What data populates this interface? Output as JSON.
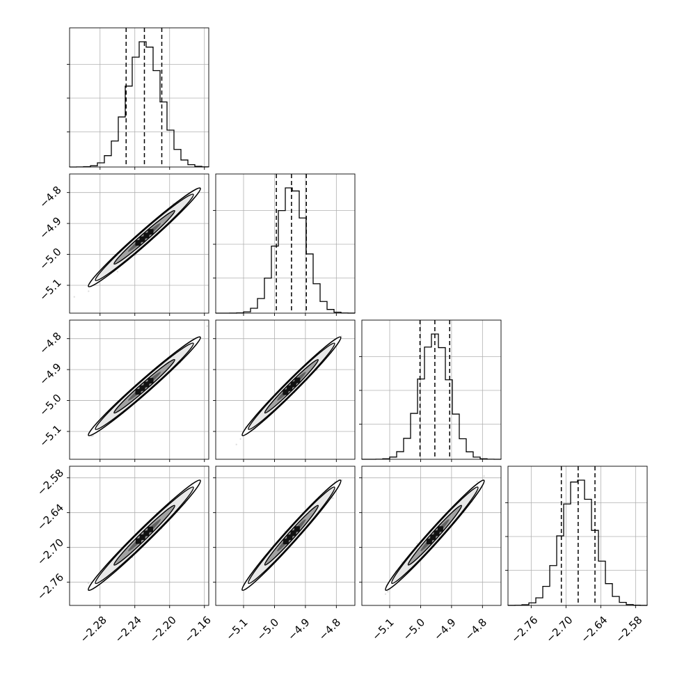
{
  "chart_data": {
    "type": "corner",
    "figure": "corner plot of 4 parameters: 1D marginal histograms on the diagonal, 2D density contours with scatter in the lower triangle",
    "parameters": [
      {
        "name": "",
        "range": [
          -2.315,
          -2.155
        ],
        "ticks": [
          -2.28,
          -2.24,
          -2.2,
          -2.16
        ],
        "tick_labels": [
          "−2.28",
          "−2.24",
          "−2.20",
          "−2.16"
        ],
        "mean": -2.229,
        "sigma": 0.019,
        "quantiles": [
          -2.25,
          -2.229,
          -2.209
        ]
      },
      {
        "name": "",
        "range": [
          -5.19,
          -4.74
        ],
        "ticks": [
          -5.1,
          -5.0,
          -4.9,
          -4.8
        ],
        "tick_labels": [
          "−5.1",
          "−5.0",
          "−4.9",
          "−4.8"
        ],
        "mean": -4.945,
        "sigma": 0.047,
        "quantiles": [
          -4.994,
          -4.945,
          -4.897
        ]
      },
      {
        "name": "",
        "range": [
          -5.19,
          -4.74
        ],
        "ticks": [
          -5.1,
          -5.0,
          -4.9,
          -4.8
        ],
        "tick_labels": [
          "−5.1",
          "−5.0",
          "−4.9",
          "−4.8"
        ],
        "mean": -4.954,
        "sigma": 0.047,
        "quantiles": [
          -5.002,
          -4.954,
          -4.906
        ]
      },
      {
        "name": "",
        "range": [
          -2.8,
          -2.56
        ],
        "ticks": [
          -2.76,
          -2.7,
          -2.64,
          -2.58
        ],
        "tick_labels": [
          "−2.76",
          "−2.70",
          "−2.64",
          "−2.58"
        ],
        "mean": -2.679,
        "sigma": 0.028,
        "quantiles": [
          -2.708,
          -2.679,
          -2.65
        ]
      }
    ],
    "correlation": 0.985,
    "diagonal_histogram_bins": 20,
    "quantile_lines": "dashed, 16% / 50% / 84%",
    "grid": true,
    "colors": {
      "line": "#000000",
      "grid": "#b0b0b0",
      "points": "#9a9a9a"
    }
  }
}
